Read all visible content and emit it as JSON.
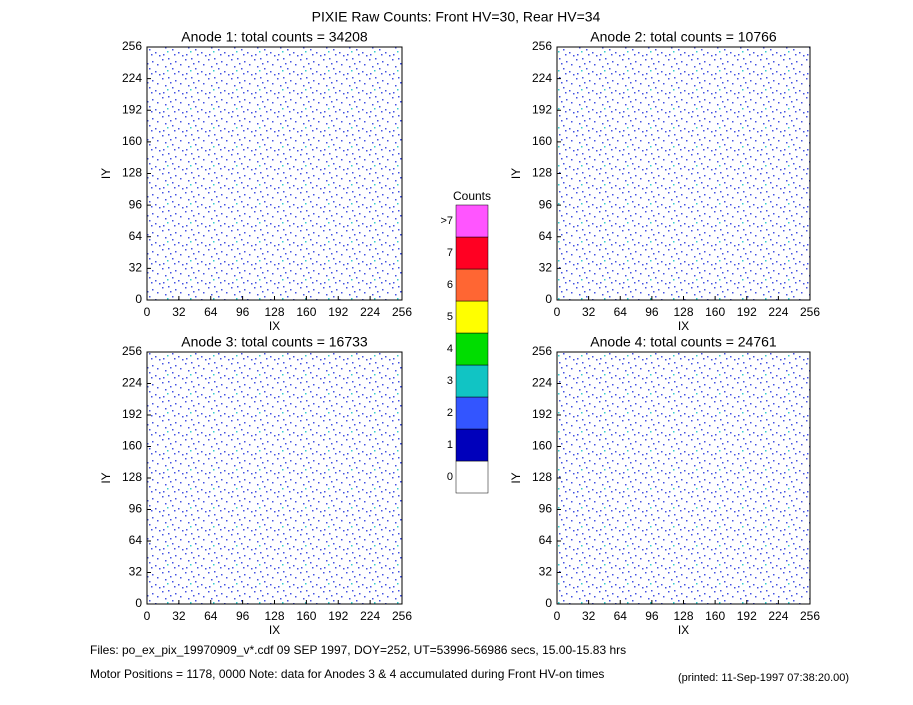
{
  "title": "PIXIE Raw Counts:  Front HV=30, Rear HV=34",
  "chart_data": [
    {
      "type": "heatmap",
      "title": "Anode 1: total counts = 34208",
      "xlabel": "IX",
      "ylabel": "IY",
      "xlim": [
        0,
        256
      ],
      "ylim": [
        0,
        256
      ],
      "xticks": [
        0,
        32,
        64,
        96,
        128,
        160,
        192,
        224,
        256
      ],
      "yticks": [
        0,
        32,
        64,
        96,
        128,
        160,
        192,
        224,
        256
      ]
    },
    {
      "type": "heatmap",
      "title": "Anode 2: total counts = 10766",
      "xlabel": "IX",
      "ylabel": "IY",
      "xlim": [
        0,
        256
      ],
      "ylim": [
        0,
        256
      ],
      "xticks": [
        0,
        32,
        64,
        96,
        128,
        160,
        192,
        224,
        256
      ],
      "yticks": [
        0,
        32,
        64,
        96,
        128,
        160,
        192,
        224,
        256
      ]
    },
    {
      "type": "heatmap",
      "title": "Anode 3: total counts = 16733",
      "xlabel": "IX",
      "ylabel": "IY",
      "xlim": [
        0,
        256
      ],
      "ylim": [
        0,
        256
      ],
      "xticks": [
        0,
        32,
        64,
        96,
        128,
        160,
        192,
        224,
        256
      ],
      "yticks": [
        0,
        32,
        64,
        96,
        128,
        160,
        192,
        224,
        256
      ]
    },
    {
      "type": "heatmap",
      "title": "Anode 4: total counts = 24761",
      "xlabel": "IX",
      "ylabel": "IY",
      "xlim": [
        0,
        256
      ],
      "ylim": [
        0,
        256
      ],
      "xticks": [
        0,
        32,
        64,
        96,
        128,
        160,
        192,
        224,
        256
      ],
      "yticks": [
        0,
        32,
        64,
        96,
        128,
        160,
        192,
        224,
        256
      ]
    }
  ],
  "colorbar": {
    "title": "Counts",
    "labels": [
      "0",
      "1",
      "2",
      "3",
      "4",
      "5",
      "6",
      "7",
      ">7"
    ],
    "colors": [
      "#ffffff",
      "#0000bb",
      "#3355ff",
      "#11c4c4",
      "#00dd00",
      "#ffff00",
      "#ff6633",
      "#ff0022",
      "#ff55ff"
    ]
  },
  "notes": [
    "Files: po_ex_pix_19970909_v*.cdf    09 SEP 1997, DOY=252, UT=53996-56986 secs, 15.00-15.83 hrs",
    "Motor Positions = 1178, 0000    Note: data for Anodes 3 & 4 accumulated during Front HV-on times",
    "(printed: 11-Sep-1997 07:38:20.00)"
  ]
}
